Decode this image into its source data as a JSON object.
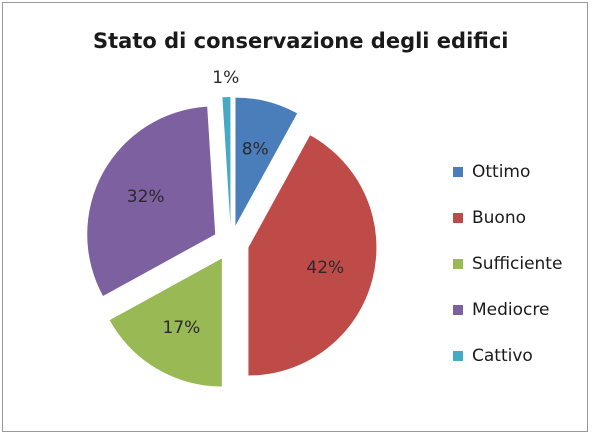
{
  "chart_data": {
    "type": "pie",
    "title": "Stato di conservazione degli edifici",
    "categories": [
      "Ottimo",
      "Buono",
      "Sufficiente",
      "Mediocre",
      "Cattivo"
    ],
    "values": [
      8,
      42,
      17,
      32,
      1
    ],
    "labels": [
      "8%",
      "42%",
      "17%",
      "32%",
      "1%"
    ],
    "colors": [
      "#4a7ebb",
      "#be4b48",
      "#98b954",
      "#7d60a0",
      "#46aac5"
    ],
    "exploded": true,
    "start_angle_deg": 0,
    "direction": "clockwise",
    "legend": {
      "position": "right",
      "entries": [
        "Ottimo",
        "Buono",
        "Sufficiente",
        "Mediocre",
        "Cattivo"
      ]
    }
  }
}
